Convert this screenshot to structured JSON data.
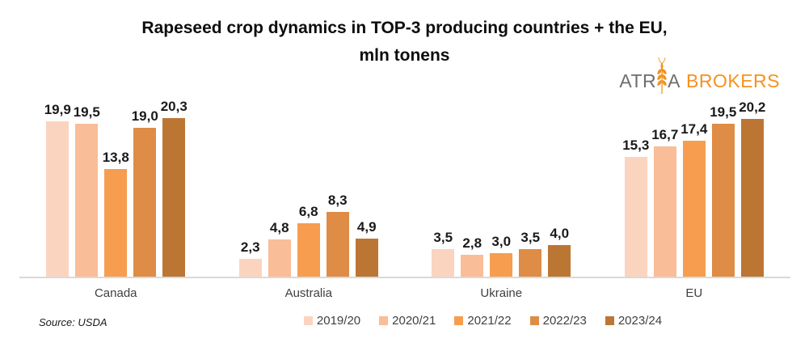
{
  "header": {
    "title": "Rapeseed crop dynamics in TOP-3 producing countries + the EU,\nmln tonens"
  },
  "logo": {
    "part1": "ATR",
    "part2": "A",
    "part3": "BROKERS",
    "gray_color": "#6d6e71",
    "orange_color": "#f6921e"
  },
  "footer": {
    "source": "Source: USDA"
  },
  "chart_data": {
    "type": "bar",
    "title": "Rapeseed crop dynamics in TOP-3 producing countries + the EU, mln tonens",
    "categories": [
      "Canada",
      "Australia",
      "Ukraine",
      "EU"
    ],
    "series": [
      {
        "name": "2019/20",
        "color": "#fbd4bf",
        "values": [
          19.9,
          2.3,
          3.5,
          15.3
        ],
        "labels": [
          "19,9",
          "2,3",
          "3,5",
          "15,3"
        ]
      },
      {
        "name": "2020/21",
        "color": "#f9bd97",
        "values": [
          19.5,
          4.8,
          2.8,
          16.7
        ],
        "labels": [
          "19,5",
          "4,8",
          "2,8",
          "16,7"
        ]
      },
      {
        "name": "2021/22",
        "color": "#f69d50",
        "values": [
          13.8,
          6.8,
          3.0,
          17.4
        ],
        "labels": [
          "13,8",
          "6,8",
          "3,0",
          "17,4"
        ]
      },
      {
        "name": "2022/23",
        "color": "#de8c46",
        "values": [
          19.0,
          8.3,
          3.5,
          19.5
        ],
        "labels": [
          "19,0",
          "8,3",
          "3,5",
          "19,5"
        ]
      },
      {
        "name": "2023/24",
        "color": "#bc7634",
        "values": [
          20.3,
          4.9,
          4.0,
          20.2
        ],
        "labels": [
          "20,3",
          "4,9",
          "4,0",
          "20,2"
        ]
      }
    ],
    "ylim": [
      0,
      24
    ],
    "grid": false,
    "y_axis_visible": false,
    "legend_position": "bottom",
    "baseline_color": "#d9d9d9"
  }
}
